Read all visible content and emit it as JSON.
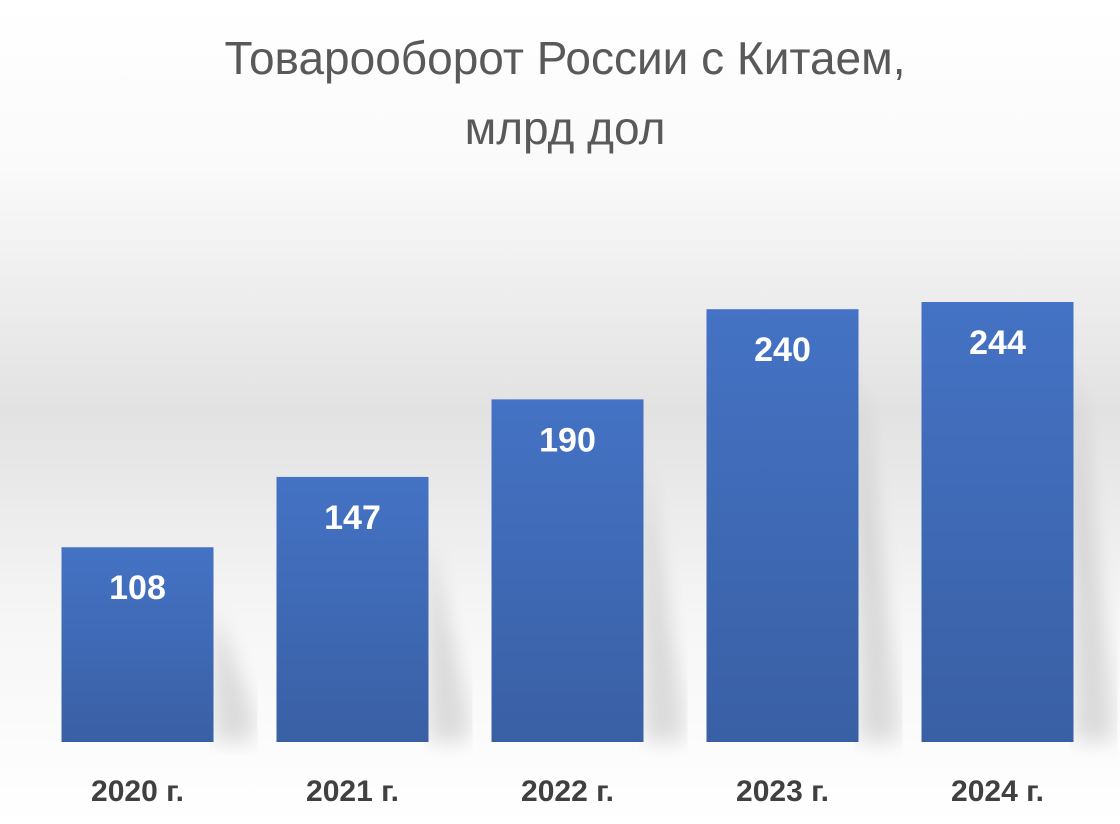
{
  "chart_data": {
    "type": "bar",
    "title": [
      "Товарооборот России с Китаем,",
      "млрд дол"
    ],
    "categories": [
      "2020 г.",
      "2021 г.",
      "2022 г.",
      "2023 г.",
      "2024 г."
    ],
    "values": [
      108,
      147,
      190,
      240,
      244
    ],
    "color": "#4472c4"
  }
}
